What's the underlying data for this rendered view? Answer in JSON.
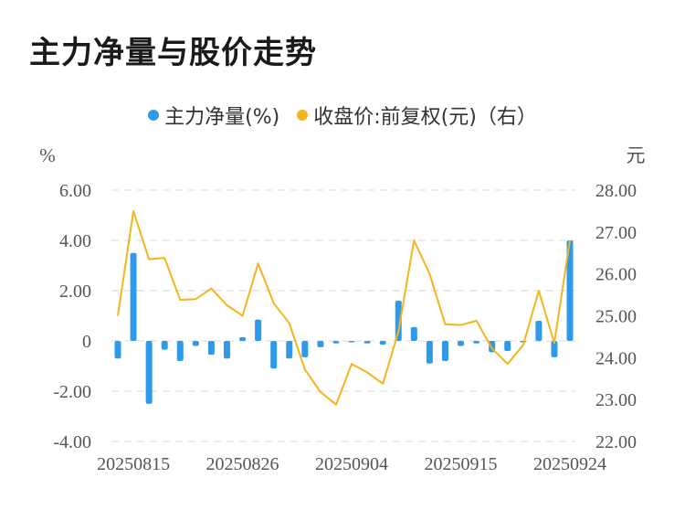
{
  "title": "主力净量与股价走势",
  "legend": {
    "series1": "主力净量(%)",
    "series2": "收盘价:前复权(元)（右）"
  },
  "colors": {
    "bar": "#2f9be8",
    "line": "#f2b51c",
    "grid": "#e6e6e6",
    "axis_text": "#555555"
  },
  "chart_data": {
    "type": "bar+line",
    "left_unit": "%",
    "right_unit": "元",
    "left_ticks": [
      "6.00",
      "4.00",
      "2.00",
      "0",
      "-2.00",
      "-4.00"
    ],
    "right_ticks": [
      "28.00",
      "27.00",
      "26.00",
      "25.00",
      "24.00",
      "23.00",
      "22.00"
    ],
    "ylim_left": [
      -4,
      6
    ],
    "ylim_right": [
      22,
      28
    ],
    "x_tick_labels": [
      "20250815",
      "20250826",
      "20250904",
      "20250915",
      "20250924"
    ],
    "x_tick_index": [
      1,
      8,
      15,
      22,
      29
    ],
    "series": [
      {
        "name": "主力净量(%)",
        "type": "bar",
        "values": [
          -0.7,
          3.5,
          -2.5,
          -0.35,
          -0.8,
          -0.2,
          -0.55,
          -0.7,
          0.15,
          0.85,
          -1.1,
          -0.7,
          -0.65,
          -0.25,
          -0.1,
          -0.05,
          -0.1,
          -0.15,
          1.6,
          0.55,
          -0.9,
          -0.8,
          -0.2,
          -0.1,
          -0.45,
          -0.4,
          -0.05,
          0.8,
          -0.65,
          4.0
        ]
      },
      {
        "name": "收盘价:前复权(元)（右）",
        "type": "line",
        "values": [
          25.0,
          27.5,
          26.35,
          26.38,
          25.38,
          25.4,
          25.65,
          25.25,
          25.0,
          26.25,
          25.3,
          24.82,
          23.72,
          23.18,
          22.88,
          23.85,
          23.65,
          23.38,
          24.62,
          26.8,
          26.0,
          24.8,
          24.78,
          24.88,
          24.22,
          23.85,
          24.3,
          25.6,
          24.35,
          26.8
        ]
      }
    ]
  }
}
